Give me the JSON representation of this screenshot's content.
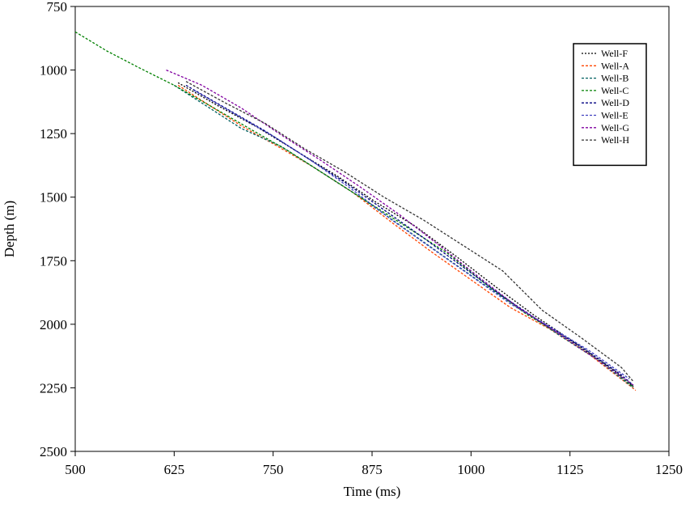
{
  "chart_data": {
    "type": "line",
    "title": "",
    "xlabel": "Time (ms)",
    "ylabel": "Depth (m)",
    "xlim": [
      500,
      1250
    ],
    "ylim": [
      750,
      2500
    ],
    "y_inverted": true,
    "xticks": [
      500,
      625,
      750,
      875,
      1000,
      1125,
      1250
    ],
    "yticks": [
      750,
      1000,
      1250,
      1500,
      1750,
      2000,
      2250,
      2500
    ],
    "grid": false,
    "legend_position": "top-right",
    "series": [
      {
        "name": "Well-F",
        "color": "#000000",
        "dash": "2,2",
        "x": [
          630,
          680,
          730,
          780,
          830,
          880,
          930,
          980,
          1030,
          1080,
          1130,
          1180,
          1205
        ],
        "y": [
          1050,
          1140,
          1225,
          1320,
          1415,
          1520,
          1615,
          1730,
          1850,
          1965,
          2070,
          2180,
          2245
        ]
      },
      {
        "name": "Well-A",
        "color": "#ff4500",
        "dash": "3,2",
        "x": [
          630,
          670,
          710,
          750,
          800,
          850,
          900,
          950,
          1000,
          1050,
          1100,
          1150,
          1200,
          1208
        ],
        "y": [
          1060,
          1140,
          1220,
          1290,
          1380,
          1480,
          1600,
          1715,
          1825,
          1935,
          2020,
          2120,
          2240,
          2260
        ]
      },
      {
        "name": "Well-B",
        "color": "#006060",
        "dash": "3,2",
        "x": [
          625,
          670,
          710,
          760,
          810,
          860,
          910,
          960,
          1010,
          1060,
          1110,
          1160,
          1205
        ],
        "y": [
          1060,
          1150,
          1230,
          1300,
          1400,
          1500,
          1610,
          1720,
          1830,
          1935,
          2040,
          2140,
          2250
        ]
      },
      {
        "name": "Well-C",
        "color": "#008000",
        "dash": "3,2",
        "x": [
          500,
          540,
          580,
          625,
          670,
          720,
          770,
          820,
          870,
          920,
          970,
          1020,
          1070,
          1120,
          1170,
          1205
        ],
        "y": [
          850,
          925,
          990,
          1060,
          1140,
          1230,
          1320,
          1420,
          1520,
          1620,
          1720,
          1845,
          1960,
          2055,
          2160,
          2245
        ]
      },
      {
        "name": "Well-D",
        "color": "#000080",
        "dash": "3,2",
        "x": [
          640,
          690,
          740,
          790,
          840,
          890,
          940,
          990,
          1040,
          1090,
          1140,
          1190,
          1205
        ],
        "y": [
          1060,
          1150,
          1240,
          1340,
          1440,
          1550,
          1660,
          1775,
          1890,
          1995,
          2090,
          2200,
          2240
        ]
      },
      {
        "name": "Well-E",
        "color": "#4040c0",
        "dash": "3,2",
        "x": [
          650,
          700,
          750,
          800,
          850,
          900,
          950,
          1000,
          1050,
          1100,
          1150,
          1200
        ],
        "y": [
          1080,
          1170,
          1260,
          1360,
          1470,
          1590,
          1700,
          1810,
          1920,
          2010,
          2105,
          2215
        ]
      },
      {
        "name": "Well-G",
        "color": "#8000a0",
        "dash": "3,2",
        "x": [
          615,
          660,
          710,
          760,
          810,
          860,
          910,
          960,
          1010,
          1060,
          1110,
          1160,
          1205
        ],
        "y": [
          1000,
          1060,
          1150,
          1255,
          1355,
          1460,
          1570,
          1690,
          1815,
          1935,
          2035,
          2140,
          2240
        ]
      },
      {
        "name": "Well-H",
        "color": "#333333",
        "dash": "3,2",
        "x": [
          640,
          690,
          740,
          790,
          840,
          890,
          940,
          990,
          1040,
          1090,
          1140,
          1190,
          1205
        ],
        "y": [
          1045,
          1130,
          1210,
          1310,
          1400,
          1500,
          1590,
          1690,
          1790,
          1945,
          2055,
          2170,
          2225
        ]
      }
    ]
  }
}
